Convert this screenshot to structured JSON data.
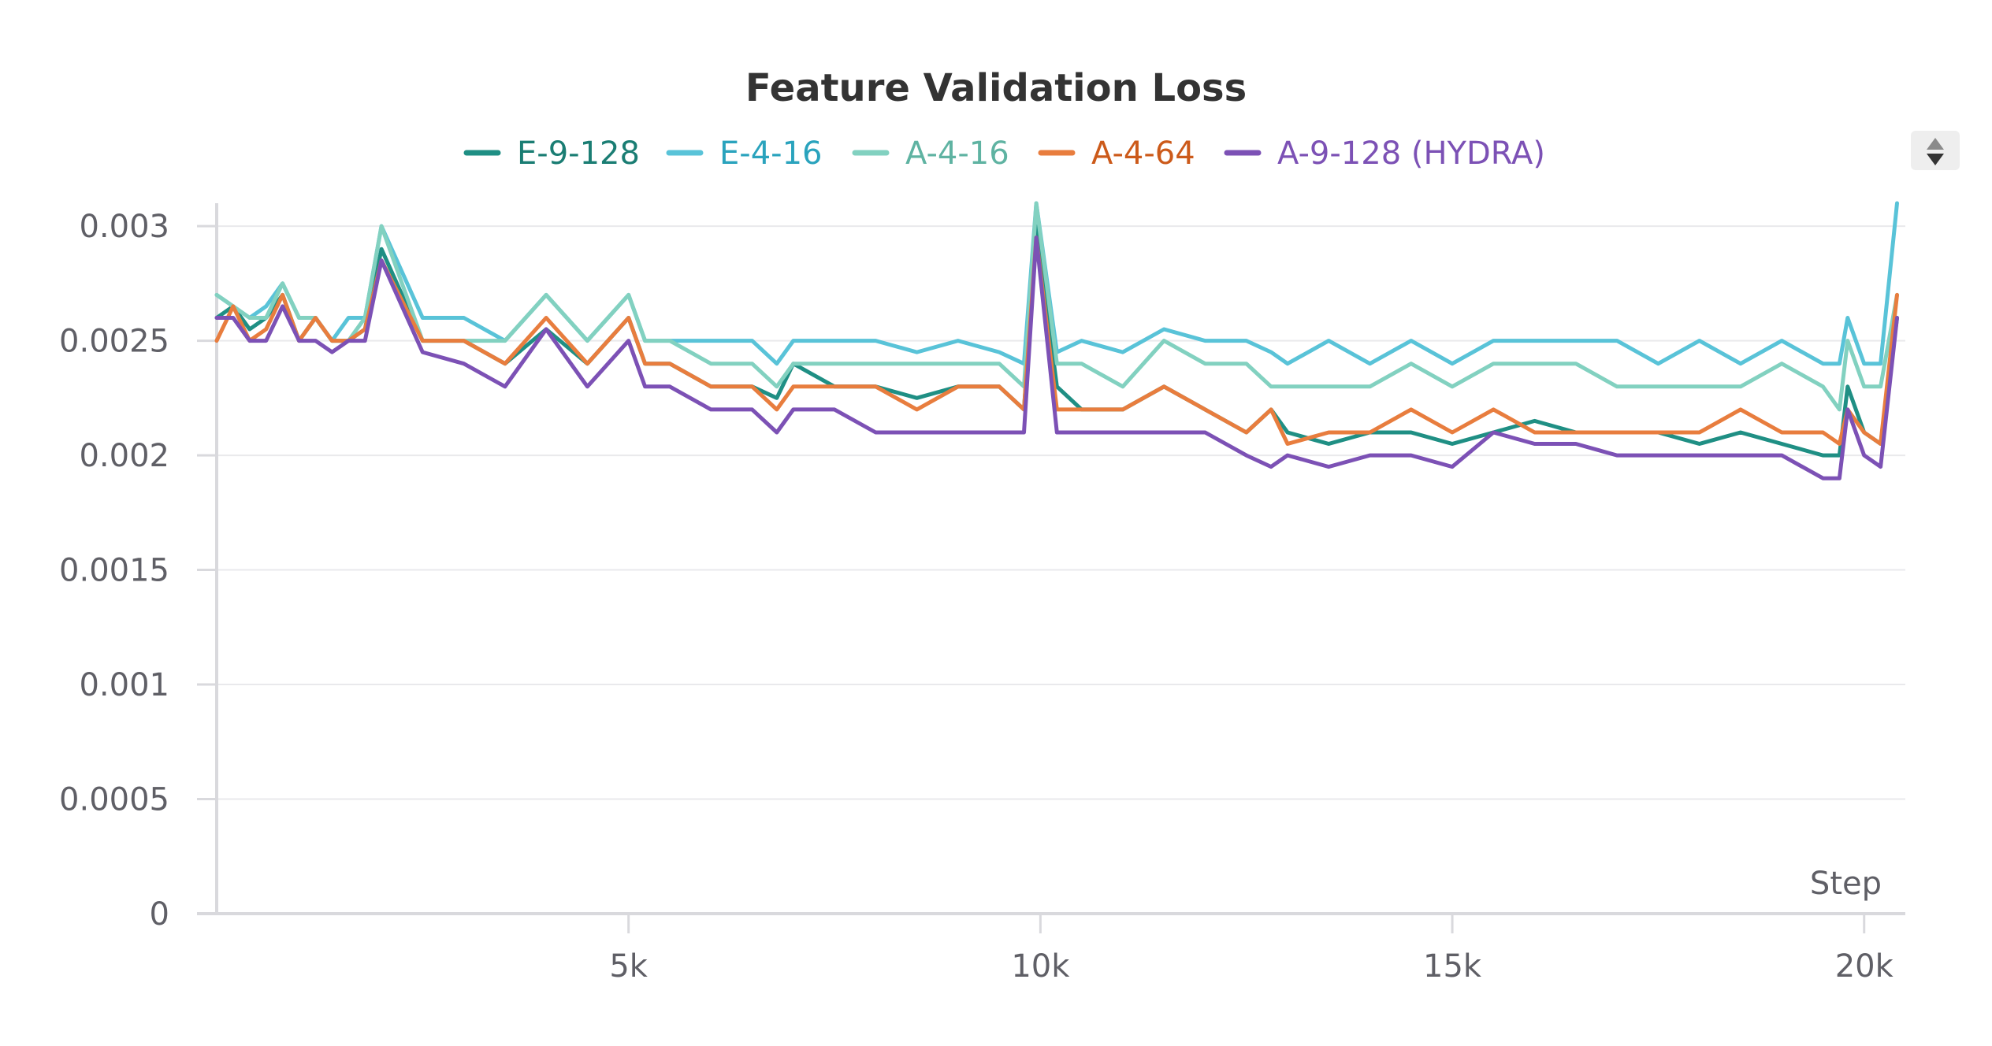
{
  "chart_data": {
    "type": "line",
    "title": "Feature Validation Loss",
    "xlabel": "Step",
    "ylabel": "",
    "xlim": [
      0,
      20500
    ],
    "ylim": [
      0,
      0.0031
    ],
    "xticks": [
      5000,
      10000,
      15000,
      20000
    ],
    "xtick_labels": [
      "5k",
      "10k",
      "15k",
      "20k"
    ],
    "yticks": [
      0,
      0.0005,
      0.001,
      0.0015,
      0.002,
      0.0025,
      0.003
    ],
    "ytick_labels": [
      "0",
      "0.0005",
      "0.001",
      "0.0015",
      "0.002",
      "0.0025",
      "0.003"
    ],
    "grid": true,
    "legend_position": "top",
    "x": [
      0,
      200,
      400,
      600,
      800,
      1000,
      1200,
      1400,
      1600,
      1800,
      2000,
      2500,
      3000,
      3500,
      4000,
      4500,
      5000,
      5200,
      5500,
      6000,
      6500,
      6800,
      7000,
      7500,
      8000,
      8500,
      9000,
      9500,
      9800,
      9950,
      10200,
      10500,
      11000,
      11500,
      12000,
      12500,
      12800,
      13000,
      13500,
      14000,
      14500,
      15000,
      15500,
      16000,
      16500,
      17000,
      17500,
      18000,
      18500,
      19000,
      19500,
      19700,
      19800,
      20000,
      20200,
      20400
    ],
    "series": [
      {
        "name": "E-9-128",
        "color": "#1f8f84",
        "values": [
          0.0026,
          0.00265,
          0.00255,
          0.0026,
          0.0027,
          0.0025,
          0.0026,
          0.0025,
          0.0025,
          0.00255,
          0.0029,
          0.0025,
          0.0025,
          0.0024,
          0.00255,
          0.0024,
          0.0026,
          0.0024,
          0.0024,
          0.0023,
          0.0023,
          0.00225,
          0.0024,
          0.0023,
          0.0023,
          0.00225,
          0.0023,
          0.0023,
          0.0022,
          0.003,
          0.0023,
          0.0022,
          0.0022,
          0.0023,
          0.0022,
          0.0021,
          0.0022,
          0.0021,
          0.00205,
          0.0021,
          0.0021,
          0.00205,
          0.0021,
          0.00215,
          0.0021,
          0.0021,
          0.0021,
          0.00205,
          0.0021,
          0.00205,
          0.002,
          0.002,
          0.0023,
          0.0021,
          0.00205,
          0.0026
        ]
      },
      {
        "name": "E-4-16",
        "color": "#59c3d8",
        "values": [
          0.0027,
          0.00265,
          0.0026,
          0.00265,
          0.00275,
          0.0026,
          0.0026,
          0.0025,
          0.0026,
          0.0026,
          0.003,
          0.0026,
          0.0026,
          0.0025,
          0.0027,
          0.0025,
          0.0027,
          0.0025,
          0.0025,
          0.0025,
          0.0025,
          0.0024,
          0.0025,
          0.0025,
          0.0025,
          0.00245,
          0.0025,
          0.00245,
          0.0024,
          0.0031,
          0.00245,
          0.0025,
          0.00245,
          0.00255,
          0.0025,
          0.0025,
          0.00245,
          0.0024,
          0.0025,
          0.0024,
          0.0025,
          0.0024,
          0.0025,
          0.0025,
          0.0025,
          0.0025,
          0.0024,
          0.0025,
          0.0024,
          0.0025,
          0.0024,
          0.0024,
          0.0026,
          0.0024,
          0.0024,
          0.0031
        ]
      },
      {
        "name": "A-4-16",
        "color": "#82d1c0",
        "values": [
          0.0027,
          0.00265,
          0.0026,
          0.0026,
          0.00275,
          0.0026,
          0.0026,
          0.0025,
          0.0025,
          0.0026,
          0.003,
          0.0025,
          0.0025,
          0.0025,
          0.0027,
          0.0025,
          0.0027,
          0.0025,
          0.0025,
          0.0024,
          0.0024,
          0.0023,
          0.0024,
          0.0024,
          0.0024,
          0.0024,
          0.0024,
          0.0024,
          0.0023,
          0.0031,
          0.0024,
          0.0024,
          0.0023,
          0.0025,
          0.0024,
          0.0024,
          0.0023,
          0.0023,
          0.0023,
          0.0023,
          0.0024,
          0.0023,
          0.0024,
          0.0024,
          0.0024,
          0.0023,
          0.0023,
          0.0023,
          0.0023,
          0.0024,
          0.0023,
          0.0022,
          0.0025,
          0.0023,
          0.0023,
          0.0027
        ]
      },
      {
        "name": "A-4-64",
        "color": "#e87d3e",
        "values": [
          0.0025,
          0.00265,
          0.0025,
          0.00255,
          0.0027,
          0.0025,
          0.0026,
          0.0025,
          0.0025,
          0.00255,
          0.00285,
          0.0025,
          0.0025,
          0.0024,
          0.0026,
          0.0024,
          0.0026,
          0.0024,
          0.0024,
          0.0023,
          0.0023,
          0.0022,
          0.0023,
          0.0023,
          0.0023,
          0.0022,
          0.0023,
          0.0023,
          0.0022,
          0.00295,
          0.0022,
          0.0022,
          0.0022,
          0.0023,
          0.0022,
          0.0021,
          0.0022,
          0.00205,
          0.0021,
          0.0021,
          0.0022,
          0.0021,
          0.0022,
          0.0021,
          0.0021,
          0.0021,
          0.0021,
          0.0021,
          0.0022,
          0.0021,
          0.0021,
          0.00205,
          0.0022,
          0.0021,
          0.00205,
          0.0027
        ]
      },
      {
        "name": "A-9-128 (HYDRA)",
        "color": "#7c51b5",
        "values": [
          0.0026,
          0.0026,
          0.0025,
          0.0025,
          0.00265,
          0.0025,
          0.0025,
          0.00245,
          0.0025,
          0.0025,
          0.00285,
          0.00245,
          0.0024,
          0.0023,
          0.00255,
          0.0023,
          0.0025,
          0.0023,
          0.0023,
          0.0022,
          0.0022,
          0.0021,
          0.0022,
          0.0022,
          0.0021,
          0.0021,
          0.0021,
          0.0021,
          0.0021,
          0.00295,
          0.0021,
          0.0021,
          0.0021,
          0.0021,
          0.0021,
          0.002,
          0.00195,
          0.002,
          0.00195,
          0.002,
          0.002,
          0.00195,
          0.0021,
          0.00205,
          0.00205,
          0.002,
          0.002,
          0.002,
          0.002,
          0.002,
          0.0019,
          0.0019,
          0.0022,
          0.002,
          0.00195,
          0.0026
        ]
      }
    ]
  }
}
